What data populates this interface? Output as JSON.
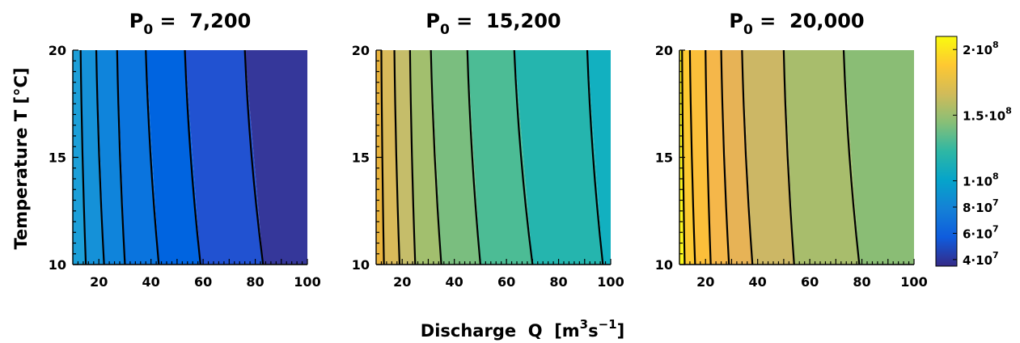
{
  "chart_data": {
    "type": "heatmap",
    "colormap": "parula",
    "xlabel": {
      "pre": "Discharge  Q  [m",
      "sup1": "3",
      "mid": "s",
      "sup2": "−1",
      "post": "]"
    },
    "ylabel": "Temperature  T  [°C]",
    "xlim": [
      10,
      100
    ],
    "ylim": [
      10,
      20
    ],
    "xticks": [
      "20",
      "40",
      "60",
      "80",
      "100"
    ],
    "yticks": [
      "10",
      "15",
      "20"
    ],
    "colorbar": {
      "range": [
        35000000,
        210000000
      ],
      "ticks": [
        {
          "value": 200000000,
          "mant": "2·10",
          "exp": "8"
        },
        {
          "value": 150000000,
          "mant": "1.5·10",
          "exp": "8"
        },
        {
          "value": 100000000,
          "mant": "1·10",
          "exp": "8"
        },
        {
          "value": 80000000,
          "mant": "8·10",
          "exp": "7"
        },
        {
          "value": 60000000,
          "mant": "6·10",
          "exp": "7"
        },
        {
          "value": 40000000,
          "mant": "4·10",
          "exp": "7"
        }
      ]
    },
    "panels": [
      {
        "title_main": "P",
        "title_sub": "0",
        "title_rest": " =  7,200",
        "band_colors": [
          "#1c9fd8",
          "#1591d8",
          "#0f84db",
          "#0a74de",
          "#0064e0",
          "#2152d1",
          "#35379a"
        ],
        "contours_x_at_T10": [
          15,
          22,
          30,
          43,
          59,
          83
        ],
        "contours_x_at_T20": [
          13,
          19,
          27,
          38,
          53,
          76
        ]
      },
      {
        "title_main": "P",
        "title_sub": "0",
        "title_rest": " =  15,200",
        "band_colors": [
          "#eab43e",
          "#d9ba5a",
          "#c5bd6a",
          "#a2bf6e",
          "#7abe7f",
          "#4cbc95",
          "#25b5ae",
          "#12b0c0"
        ],
        "contours_x_at_T10": [
          13,
          19,
          25,
          35,
          50,
          70,
          97
        ],
        "contours_x_at_T20": [
          12,
          17,
          23,
          31,
          45,
          63,
          91
        ]
      },
      {
        "title_main": "P",
        "title_sub": "0",
        "title_rest": " =  20,000",
        "band_colors": [
          "#fbf61d",
          "#fdca33",
          "#fbbf3a",
          "#f5b74a",
          "#e7b356",
          "#ccb765",
          "#a8bd6c",
          "#8abd75"
        ],
        "contours_x_at_T10": [
          12,
          16,
          22,
          29,
          38,
          54,
          79
        ],
        "contours_x_at_T20": [
          11,
          14,
          20,
          26,
          34,
          50,
          73
        ]
      }
    ]
  }
}
